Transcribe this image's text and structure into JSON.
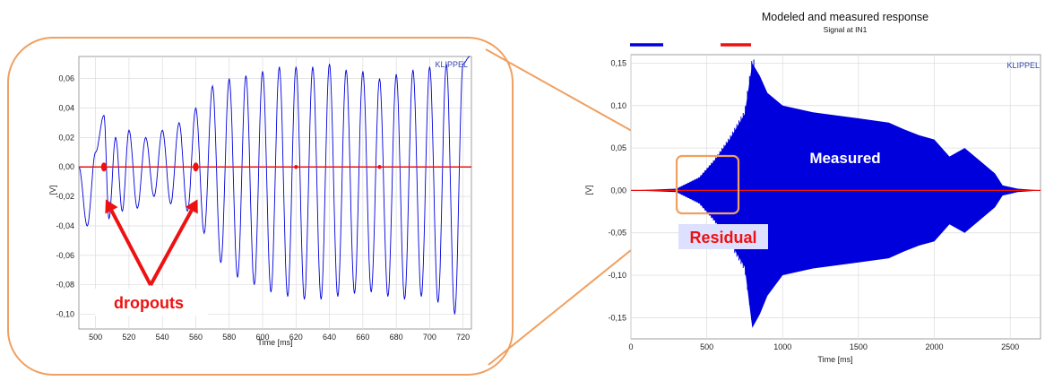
{
  "colors": {
    "measured": "#0000dd",
    "residual": "#ee1111",
    "callout": "#f0a060",
    "arrow": "#ee1111",
    "grid": "#dcdcdc",
    "residual_box": "#dde0ff"
  },
  "chart_data": [
    {
      "type": "line",
      "brand": "KLIPPEL",
      "xlabel": "Time [ms]",
      "ylabel": "[V]",
      "xlim": [
        490,
        725
      ],
      "ylim": [
        -0.11,
        0.075
      ],
      "xticks": [
        "500",
        "520",
        "540",
        "560",
        "580",
        "600",
        "620",
        "640",
        "660",
        "680",
        "700",
        "720"
      ],
      "yticks": [
        "0,06",
        "0,04",
        "0,02",
        "0,00",
        "-0,02",
        "-0,04",
        "-0,06",
        "-0,08",
        "-0,10"
      ],
      "grid": true,
      "series": [
        {
          "name": "measured",
          "x": [
            490,
            495,
            500,
            505,
            508,
            512,
            516,
            520,
            525,
            530,
            535,
            540,
            545,
            550,
            555,
            560,
            565,
            570,
            575,
            580,
            585,
            590,
            595,
            600,
            605,
            610,
            615,
            620,
            625,
            630,
            635,
            640,
            645,
            650,
            655,
            660,
            665,
            670,
            675,
            680,
            685,
            690,
            695,
            700,
            705,
            710,
            715,
            720,
            724
          ],
          "y": [
            0.0,
            -0.04,
            0.01,
            0.035,
            -0.035,
            0.02,
            -0.03,
            0.025,
            -0.028,
            0.02,
            -0.02,
            0.025,
            -0.025,
            0.03,
            -0.03,
            0.04,
            -0.045,
            0.055,
            -0.065,
            0.06,
            -0.075,
            0.062,
            -0.08,
            0.065,
            -0.085,
            0.068,
            -0.088,
            0.068,
            -0.09,
            0.068,
            -0.09,
            0.07,
            -0.088,
            0.066,
            -0.086,
            0.065,
            -0.085,
            0.06,
            -0.088,
            0.063,
            -0.09,
            0.066,
            -0.088,
            0.068,
            -0.092,
            0.07,
            -0.1,
            0.07,
            0.075
          ]
        },
        {
          "name": "residual",
          "x": [
            490,
            505,
            560,
            600,
            620,
            670,
            725
          ],
          "y": [
            0,
            0,
            0,
            0,
            0,
            0,
            0
          ],
          "bursts_ms": [
            505,
            560
          ]
        }
      ],
      "annotations": [
        {
          "text": "dropouts",
          "targets_ms": [
            505,
            560
          ]
        }
      ]
    },
    {
      "type": "line",
      "title": "Modeled  and measured response",
      "subtitle": "Signal at IN1",
      "brand": "KLIPPEL",
      "xlabel": "Time [ms]",
      "ylabel": "[V]",
      "xlim": [
        0,
        2700
      ],
      "ylim": [
        -0.175,
        0.16
      ],
      "xticks": [
        "0",
        "500",
        "1000",
        "1500",
        "2000",
        "2500"
      ],
      "yticks": [
        "0,15",
        "0,10",
        "0,05",
        "0,00",
        "-0,05",
        "-0,10",
        "-0,15"
      ],
      "grid": true,
      "series": [
        {
          "name": "measured",
          "envelope_x": [
            0,
            300,
            450,
            550,
            650,
            750,
            800,
            850,
            900,
            1000,
            1200,
            1500,
            1700,
            1800,
            1900,
            2000,
            2100,
            2200,
            2300,
            2400,
            2450,
            2500,
            2550,
            2700
          ],
          "envelope_y": [
            0.0,
            0.002,
            0.015,
            0.035,
            0.06,
            0.09,
            0.15,
            0.135,
            0.115,
            0.1,
            0.092,
            0.085,
            0.08,
            0.072,
            0.065,
            0.06,
            0.04,
            0.05,
            0.035,
            0.02,
            0.006,
            0.004,
            0.002,
            0.0
          ]
        },
        {
          "name": "residual",
          "x": [
            0,
            2700
          ],
          "y": [
            0,
            0
          ]
        }
      ],
      "annotations": [
        {
          "text": "Measured"
        },
        {
          "text": "Residual"
        }
      ],
      "zoom_region_ms": [
        300,
        710
      ]
    }
  ]
}
